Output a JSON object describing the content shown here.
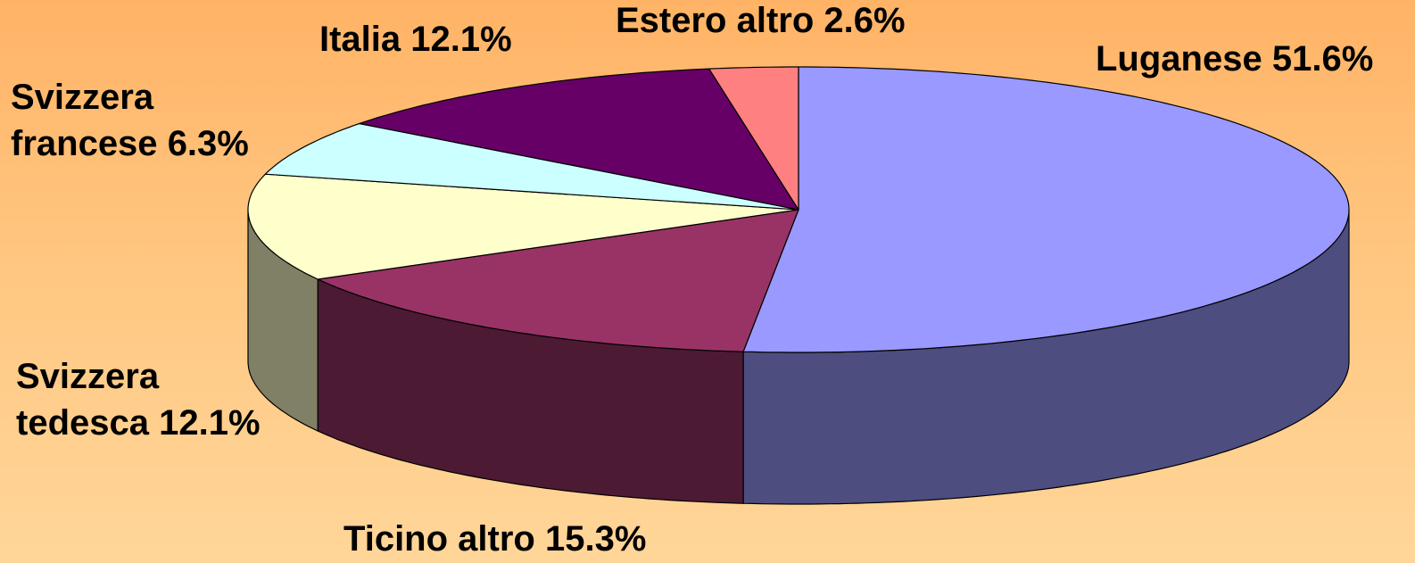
{
  "chart_data": {
    "type": "pie",
    "categories": [
      "Luganese",
      "Ticino altro",
      "Svizzera tedesca",
      "Svizzera francese",
      "Italia",
      "Estero altro"
    ],
    "values": [
      51.6,
      15.3,
      12.1,
      6.3,
      12.1,
      2.6
    ],
    "value_labels": [
      "51.6%",
      "15.3%",
      "12.1%",
      "6.3%",
      "12.1%",
      "2.6%"
    ],
    "colors": [
      "#9999ff",
      "#993366",
      "#ffffcc",
      "#ccffff",
      "#660066",
      "#ff8080"
    ]
  }
}
